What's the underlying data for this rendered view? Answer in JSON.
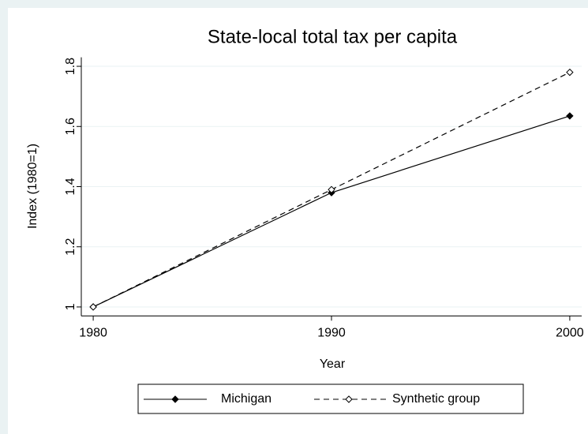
{
  "chart_data": {
    "type": "line",
    "title": "State-local total tax per capita",
    "x_label": "Year",
    "y_label": "Index (1980=1)",
    "x": [
      1980,
      1990,
      2000
    ],
    "series": [
      {
        "name": "Michigan",
        "color": "#000000",
        "line_style": "solid",
        "marker": "filled",
        "values": [
          1,
          1.38,
          1.635
        ]
      },
      {
        "name": "Synthetic group",
        "color": "#000000",
        "line_style": "dashed",
        "marker": "hollow",
        "values": [
          1,
          1.39,
          1.78
        ]
      }
    ],
    "xlim": [
      1979.5,
      2000.5
    ],
    "xticks": [
      1980,
      1990,
      2000
    ],
    "ylim": [
      0.97,
      1.83
    ],
    "yticks": [
      1,
      1.2,
      1.4,
      1.6,
      1.8
    ],
    "grid": true,
    "legend": "bottom"
  }
}
